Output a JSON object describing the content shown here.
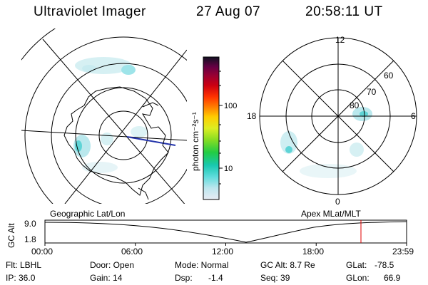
{
  "header": {
    "instrument": "Ultraviolet Imager",
    "date": "27 Aug 07",
    "time": "20:58:11 UT"
  },
  "geo_panel": {
    "label": "Geographic Lat/Lon"
  },
  "apex_panel": {
    "label": "Apex MLat/MLT",
    "mlt_labels": {
      "top": "12",
      "right": "6",
      "bottom": "0",
      "left": "18"
    },
    "lat_labels": [
      "60",
      "70",
      "80"
    ]
  },
  "colorbar": {
    "unit_label": "photon cm⁻²s⁻¹",
    "ticks": [
      "100",
      "10"
    ],
    "scale": "log",
    "colors": [
      "#e8ecf4",
      "#bde6ee",
      "#5edcdc",
      "#18c8b0",
      "#22cc44",
      "#88dd22",
      "#ddee22",
      "#ffcc00",
      "#ff8800",
      "#ff3300",
      "#cc0011",
      "#990033",
      "#660044",
      "#330033",
      "#111122"
    ]
  },
  "altitude_plot": {
    "ylabel": "GC Alt",
    "y_ticks": [
      "9.0",
      "1.8"
    ],
    "x_ticks": [
      "00:00",
      "06:00",
      "12:00",
      "18:00",
      "23:59"
    ],
    "y_range": [
      1.8,
      9.0
    ],
    "current_time_hours": 20.97,
    "marker_color": "#e00000"
  },
  "status": {
    "flt": "Flt: LBHL",
    "ip": "IP: 36.0",
    "door": "Door: Open",
    "gain": "Gain: 14",
    "mode": "Mode: Normal",
    "dsp_label": "Dsp:",
    "dsp_value": "-1.4",
    "gc_alt": "GC Alt: 8.7 Re",
    "seq": "Seq: 39",
    "glat_label": "GLat:",
    "glat_value": "-78.5",
    "glon_label": "GLon:",
    "glon_value": "66.9"
  }
}
